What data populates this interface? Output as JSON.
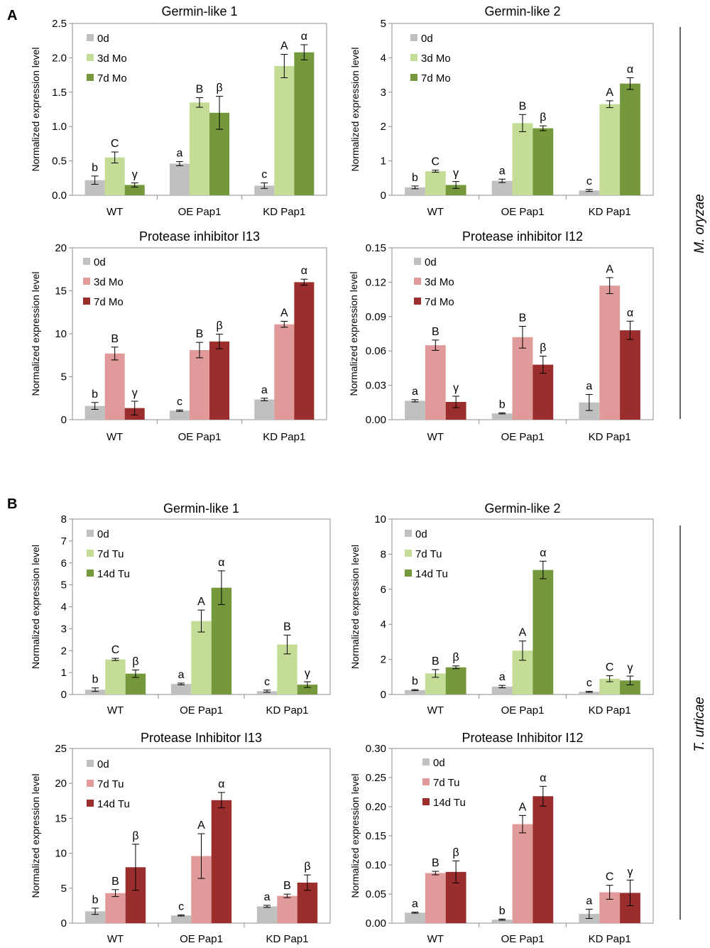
{
  "panel_labels": {
    "a": "A",
    "b": "B"
  },
  "side_labels": {
    "a": "M. oryzae",
    "b": "T. urticae"
  },
  "ylabel": "Normalized expression level",
  "chart_data": [
    {
      "type": "bar",
      "panel": "A",
      "title": "Germin-like 1",
      "ylabel": "Normalized expression level",
      "categories": [
        "WT",
        "OE Pap1",
        "KD Pap1"
      ],
      "ylim": [
        0,
        2.5
      ],
      "yticks": [
        "0.0",
        "0.5",
        "1.0",
        "1.5",
        "2.0",
        "2.5"
      ],
      "series": [
        {
          "name": "0d",
          "color": "#c0c0c0",
          "values": [
            0.22,
            0.46,
            0.14
          ],
          "errors": [
            0.06,
            0.03,
            0.04
          ],
          "letters": [
            "b",
            "a",
            "c"
          ]
        },
        {
          "name": "3d Mo",
          "color": "#c4dc96",
          "values": [
            0.55,
            1.35,
            1.88
          ],
          "errors": [
            0.08,
            0.07,
            0.17
          ],
          "letters": [
            "C",
            "B",
            "A"
          ]
        },
        {
          "name": "7d Mo",
          "color": "#76983c",
          "values": [
            0.15,
            1.2,
            2.08
          ],
          "errors": [
            0.03,
            0.24,
            0.11
          ],
          "letters": [
            "γ",
            "β",
            "α"
          ]
        }
      ]
    },
    {
      "type": "bar",
      "panel": "A",
      "title": "Germin-like 2",
      "ylabel": "Normalized expression level",
      "categories": [
        "WT",
        "OE Pap1",
        "KD Pap1"
      ],
      "ylim": [
        0,
        5
      ],
      "yticks": [
        "0",
        "1",
        "2",
        "3",
        "4",
        "5"
      ],
      "series": [
        {
          "name": "0d",
          "color": "#c0c0c0",
          "values": [
            0.23,
            0.42,
            0.14
          ],
          "errors": [
            0.04,
            0.05,
            0.03
          ],
          "letters": [
            "b",
            "a",
            "c"
          ]
        },
        {
          "name": "3d Mo",
          "color": "#c4dc96",
          "values": [
            0.7,
            2.1,
            2.65
          ],
          "errors": [
            0.03,
            0.25,
            0.1
          ],
          "letters": [
            "C",
            "B",
            "A"
          ]
        },
        {
          "name": "7d Mo",
          "color": "#76983c",
          "values": [
            0.3,
            1.95,
            3.25
          ],
          "errors": [
            0.1,
            0.07,
            0.17
          ],
          "letters": [
            "γ",
            "β",
            "α"
          ]
        }
      ]
    },
    {
      "type": "bar",
      "panel": "A",
      "title": "Protease inhibitor I13",
      "ylabel": "Normalized expression level",
      "categories": [
        "WT",
        "OE Pap1",
        "KD Pap1"
      ],
      "ylim": [
        0,
        20
      ],
      "yticks": [
        "0",
        "5",
        "10",
        "15",
        "20"
      ],
      "series": [
        {
          "name": "0d",
          "color": "#c0c0c0",
          "values": [
            1.6,
            1.05,
            2.35
          ],
          "errors": [
            0.4,
            0.08,
            0.15
          ],
          "letters": [
            "b",
            "c",
            "a"
          ]
        },
        {
          "name": "3d Mo",
          "color": "#e09a9a",
          "values": [
            7.7,
            8.1,
            11.1
          ],
          "errors": [
            0.75,
            0.9,
            0.35
          ],
          "letters": [
            "B",
            "B",
            "A"
          ]
        },
        {
          "name": "7d Mo",
          "color": "#9b2d2d",
          "values": [
            1.35,
            9.1,
            16.0
          ],
          "errors": [
            0.8,
            0.85,
            0.35
          ],
          "letters": [
            "γ",
            "β",
            "α"
          ]
        }
      ]
    },
    {
      "type": "bar",
      "panel": "A",
      "title": "Protease inhibitor I12",
      "ylabel": "Normalized expression level",
      "categories": [
        "WT",
        "OE Pap1",
        "KD Pap1"
      ],
      "ylim": [
        0,
        0.15
      ],
      "yticks": [
        "0.00",
        "0.03",
        "0.06",
        "0.09",
        "0.12",
        "0.15"
      ],
      "series": [
        {
          "name": "0d",
          "color": "#c0c0c0",
          "values": [
            0.0165,
            0.0055,
            0.015
          ],
          "errors": [
            0.001,
            0.0005,
            0.007
          ],
          "letters": [
            "a",
            "b",
            "a"
          ]
        },
        {
          "name": "3d Mo",
          "color": "#e09a9a",
          "values": [
            0.065,
            0.072,
            0.117
          ],
          "errors": [
            0.0045,
            0.0095,
            0.007
          ],
          "letters": [
            "B",
            "B",
            "A"
          ]
        },
        {
          "name": "7d Mo",
          "color": "#9b2d2d",
          "values": [
            0.0155,
            0.048,
            0.078
          ],
          "errors": [
            0.005,
            0.0075,
            0.008
          ],
          "letters": [
            "γ",
            "β",
            "α"
          ]
        }
      ]
    },
    {
      "type": "bar",
      "panel": "B",
      "title": "Germin-like 1",
      "ylabel": "Normalized expression level",
      "categories": [
        "WT",
        "OE Pap1",
        "KD Pap1"
      ],
      "ylim": [
        0,
        8
      ],
      "yticks": [
        "0",
        "1",
        "2",
        "3",
        "4",
        "5",
        "6",
        "7",
        "8"
      ],
      "series": [
        {
          "name": "0d",
          "color": "#c0c0c0",
          "values": [
            0.22,
            0.48,
            0.15
          ],
          "errors": [
            0.08,
            0.04,
            0.05
          ],
          "letters": [
            "b",
            "a",
            "c"
          ]
        },
        {
          "name": "7d Tu",
          "color": "#c4dc96",
          "values": [
            1.6,
            3.35,
            2.28
          ],
          "errors": [
            0.05,
            0.5,
            0.43
          ],
          "letters": [
            "C",
            "A",
            "B"
          ]
        },
        {
          "name": "14d Tu",
          "color": "#76983c",
          "values": [
            0.95,
            4.87,
            0.45
          ],
          "errors": [
            0.17,
            0.77,
            0.13
          ],
          "letters": [
            "β",
            "α",
            "γ"
          ]
        }
      ]
    },
    {
      "type": "bar",
      "panel": "B",
      "title": "Germin-like 2",
      "ylabel": "Normalized expression level",
      "categories": [
        "WT",
        "OE Pap1",
        "KD Pap1"
      ],
      "ylim": [
        0,
        10
      ],
      "yticks": [
        "0",
        "2",
        "4",
        "6",
        "8",
        "10"
      ],
      "series": [
        {
          "name": "0d",
          "color": "#c0c0c0",
          "values": [
            0.25,
            0.45,
            0.15
          ],
          "errors": [
            0.03,
            0.07,
            0.03
          ],
          "letters": [
            "b",
            "a",
            "c"
          ]
        },
        {
          "name": "7d Tu",
          "color": "#c4dc96",
          "values": [
            1.2,
            2.5,
            0.9
          ],
          "errors": [
            0.22,
            0.55,
            0.17
          ],
          "letters": [
            "B",
            "A",
            "C"
          ]
        },
        {
          "name": "14d Tu",
          "color": "#76983c",
          "values": [
            1.55,
            7.1,
            0.8
          ],
          "errors": [
            0.08,
            0.5,
            0.25
          ],
          "letters": [
            "β",
            "α",
            "γ"
          ]
        }
      ]
    },
    {
      "type": "bar",
      "panel": "B",
      "title": "Protease Inhibitor I13",
      "ylabel": "Normalized expression level",
      "categories": [
        "WT",
        "OE Pap1",
        "KD Pap1"
      ],
      "ylim": [
        0,
        25
      ],
      "yticks": [
        "0",
        "5",
        "10",
        "15",
        "20",
        "25"
      ],
      "series": [
        {
          "name": "0d",
          "color": "#c0c0c0",
          "values": [
            1.7,
            1.1,
            2.4
          ],
          "errors": [
            0.45,
            0.08,
            0.15
          ],
          "letters": [
            "b",
            "c",
            "a"
          ]
        },
        {
          "name": "7d Tu",
          "color": "#e09a9a",
          "values": [
            4.3,
            9.6,
            3.9
          ],
          "errors": [
            0.5,
            3.2,
            0.25
          ],
          "letters": [
            "B",
            "A",
            "B"
          ]
        },
        {
          "name": "14d Tu",
          "color": "#9b2d2d",
          "values": [
            8.0,
            17.6,
            5.8
          ],
          "errors": [
            3.3,
            1.1,
            1.1
          ],
          "letters": [
            "β",
            "α",
            "β"
          ]
        }
      ]
    },
    {
      "type": "bar",
      "panel": "B",
      "title": "Protease Inhibitor I12",
      "ylabel": "Normalized expression level",
      "categories": [
        "WT",
        "OE Pap1",
        "KD Pap1"
      ],
      "ylim": [
        0,
        0.3
      ],
      "yticks": [
        "0.00",
        "0.05",
        "0.10",
        "0.15",
        "0.20",
        "0.25",
        "0.30"
      ],
      "series": [
        {
          "name": "0d",
          "color": "#c0c0c0",
          "values": [
            0.018,
            0.006,
            0.016
          ],
          "errors": [
            0.001,
            0.001,
            0.008
          ],
          "letters": [
            "a",
            "b",
            "a"
          ]
        },
        {
          "name": "7d Tu",
          "color": "#e09a9a",
          "values": [
            0.086,
            0.17,
            0.053
          ],
          "errors": [
            0.003,
            0.015,
            0.012
          ],
          "letters": [
            "B",
            "A",
            "C"
          ]
        },
        {
          "name": "14d Tu",
          "color": "#9b2d2d",
          "values": [
            0.088,
            0.218,
            0.052
          ],
          "errors": [
            0.019,
            0.017,
            0.022
          ],
          "letters": [
            "β",
            "α",
            "γ"
          ]
        }
      ]
    }
  ]
}
